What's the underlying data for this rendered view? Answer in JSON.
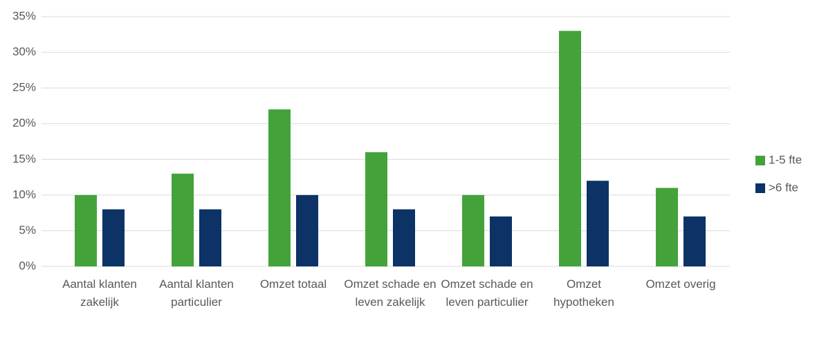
{
  "chart_data": {
    "type": "bar",
    "categories": [
      "Aantal klanten zakelijk",
      "Aantal klanten particulier",
      "Omzet totaal",
      "Omzet schade en leven zakelijk",
      "Omzet schade en leven particulier",
      "Omzet hypotheken",
      "Omzet overig"
    ],
    "series": [
      {
        "name": "1-5 fte",
        "color": "#43a33a",
        "values": [
          10,
          13,
          22,
          16,
          10,
          33,
          11
        ]
      },
      {
        "name": ">6 fte",
        "color": "#0c3266",
        "values": [
          8,
          8,
          10,
          8,
          7,
          12,
          7
        ]
      }
    ],
    "ylim": [
      0,
      35
    ],
    "yticks": [
      {
        "value": 0,
        "label": "0%"
      },
      {
        "value": 5,
        "label": "5%"
      },
      {
        "value": 10,
        "label": "10%"
      },
      {
        "value": 15,
        "label": "15%"
      },
      {
        "value": 20,
        "label": "20%"
      },
      {
        "value": 25,
        "label": "25%"
      },
      {
        "value": 30,
        "label": "30%"
      },
      {
        "value": 35,
        "label": "35%"
      }
    ],
    "grid": true,
    "legend": "right"
  }
}
